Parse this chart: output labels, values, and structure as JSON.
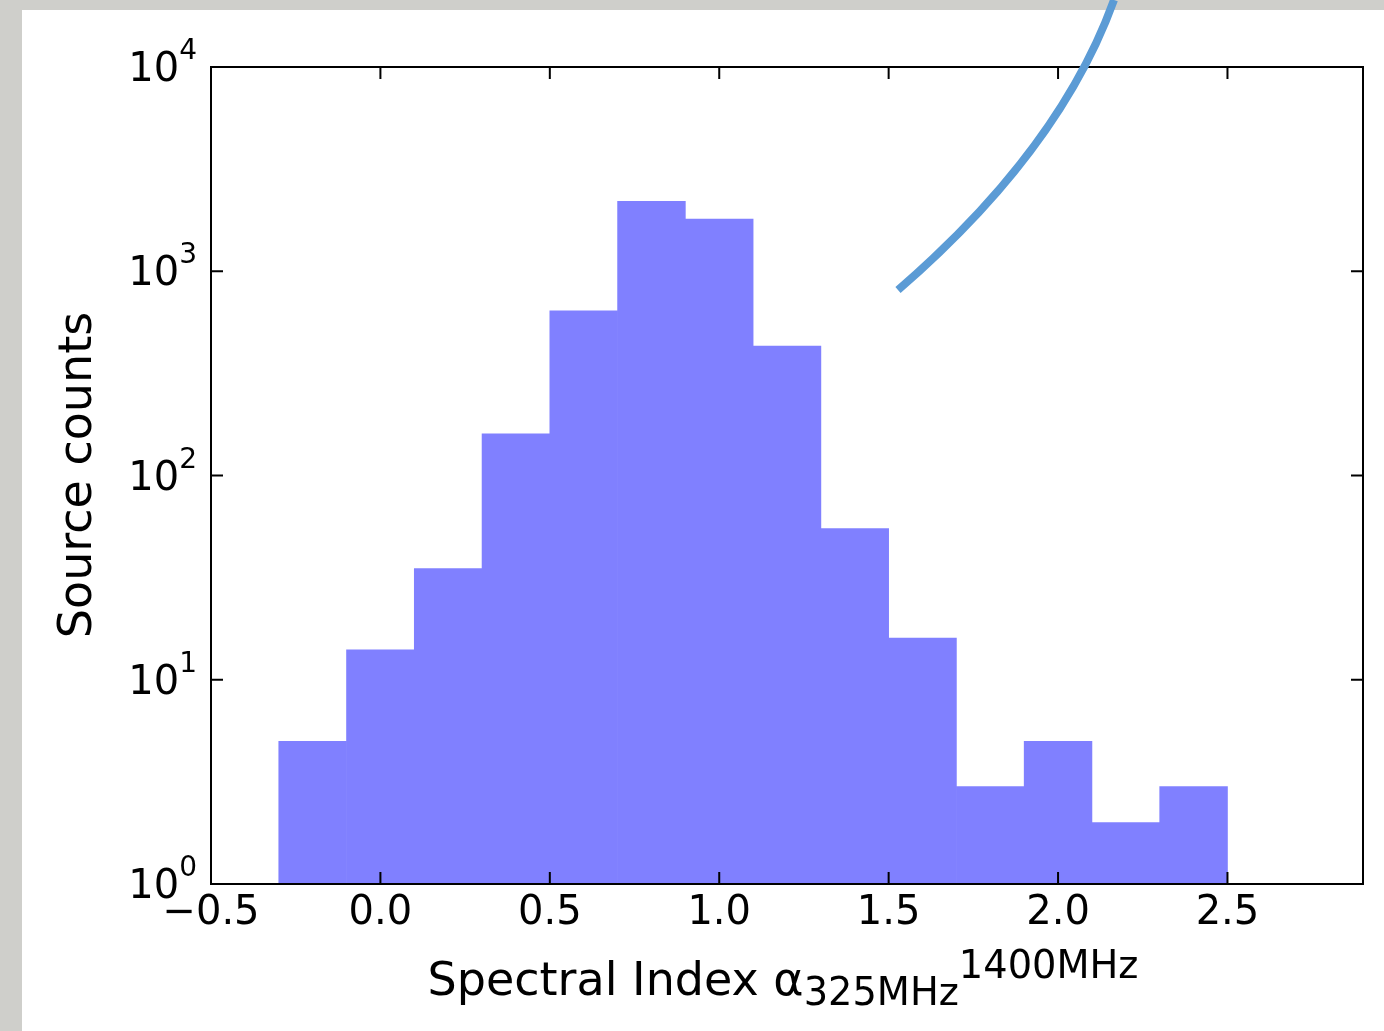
{
  "chart_data": {
    "type": "histogram",
    "xlabel": "Spectral Index α$_{325MHz}$$^{1400MHz}$",
    "ylabel": "Source counts",
    "bins": [
      -0.3,
      -0.1,
      0.1,
      0.3,
      0.5,
      0.7,
      0.9,
      1.1,
      1.3,
      1.5,
      1.7,
      1.9,
      2.1,
      2.3,
      2.5
    ],
    "values": [
      5,
      14,
      35,
      160,
      640,
      2200,
      1800,
      430,
      55,
      16,
      3,
      5,
      2,
      3
    ],
    "color": "#8080ff",
    "log": "y",
    "grid": false,
    "legend": false,
    "xlim": [
      -0.5,
      2.9
    ],
    "xticks": [
      {
        "value": -0.5,
        "label": "−0.5"
      },
      {
        "value": 0,
        "label": "0.0"
      },
      {
        "value": 0.5,
        "label": "0.5"
      },
      {
        "value": 1,
        "label": "1.0"
      },
      {
        "value": 1.5,
        "label": "1.5"
      },
      {
        "value": 2,
        "label": "2.0"
      },
      {
        "value": 2.5,
        "label": "2.5"
      }
    ],
    "ylim": [
      1,
      10000
    ],
    "yticks": [
      {
        "value": 1,
        "label": "10$^{0}$"
      },
      {
        "value": 10,
        "label": "10$^{1}$"
      },
      {
        "value": 100,
        "label": "10$^{2}$"
      },
      {
        "value": 1000,
        "label": "10$^{3}$"
      },
      {
        "value": 10000,
        "label": "10$^{4}$"
      }
    ]
  }
}
